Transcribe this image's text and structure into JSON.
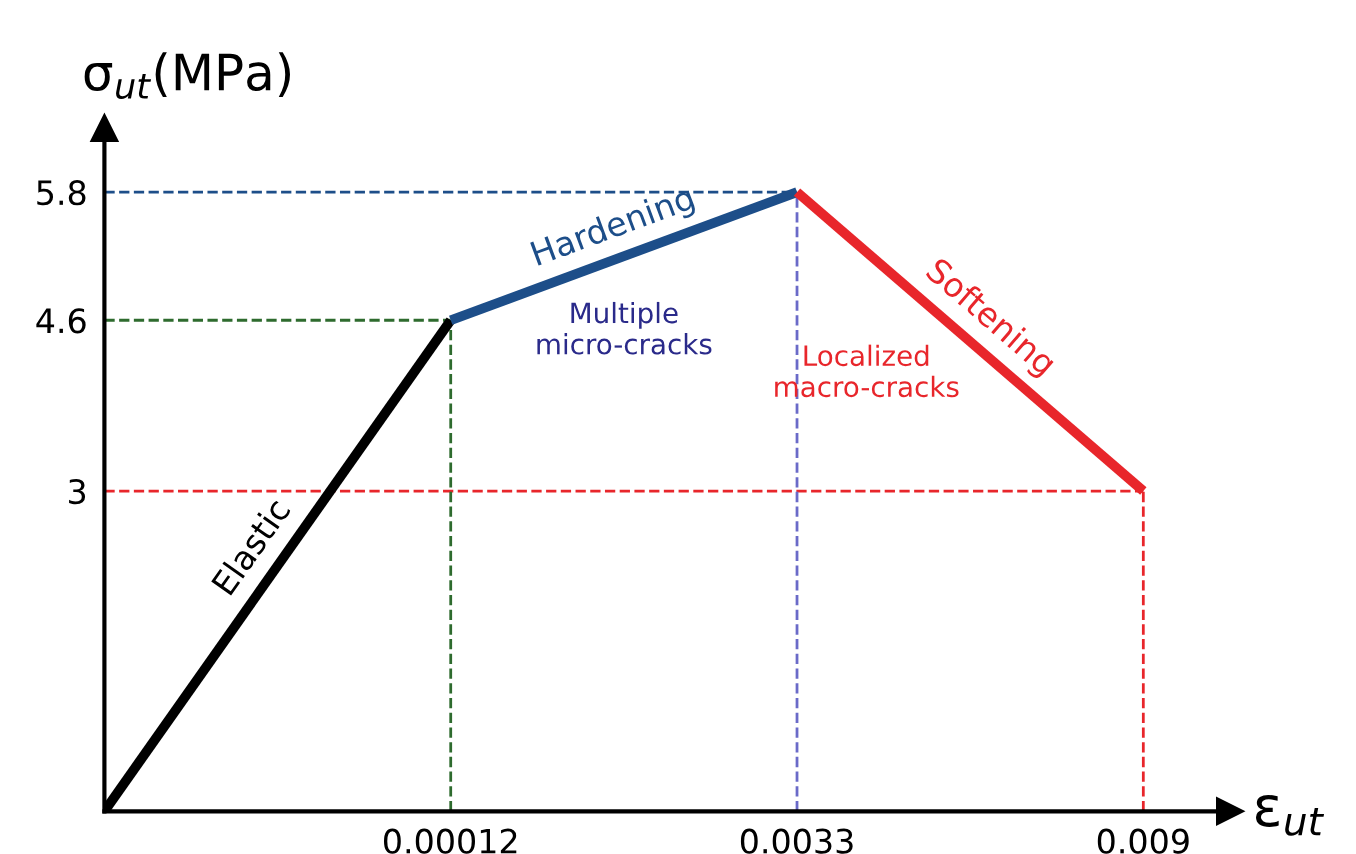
{
  "chart_data": {
    "type": "line",
    "xlabel": "ε$_{ut}$",
    "ylabel": "σ$_{ut}$(MPa)",
    "categories": [
      null,
      "0.00012",
      "0.0033",
      "0.009"
    ],
    "series": [
      {
        "name": "Elastic",
        "color": "#000000",
        "values": [
          0,
          4.6,
          null,
          null
        ]
      },
      {
        "name": "Hardening",
        "color": "#1d4e89",
        "values": [
          null,
          4.6,
          5.8,
          null
        ]
      },
      {
        "name": "Softening",
        "color": "#e8262b",
        "values": [
          null,
          null,
          5.8,
          3
        ]
      }
    ],
    "ylim": [
      0,
      6.4
    ],
    "yticks": [
      3,
      4.6,
      5.8
    ],
    "ref_lines": [
      {
        "axis": "y",
        "value": 5.8,
        "color": "#1d4e89",
        "line_style": "dashed"
      },
      {
        "axis": "y",
        "value": 4.6,
        "color": "#2e6b2e",
        "line_style": "dashed"
      },
      {
        "axis": "y",
        "value": 3,
        "color": "#e8262b",
        "line_style": "dashed"
      },
      {
        "axis": "x",
        "value": "0.00012",
        "color": "#2e6b2e",
        "line_style": "dashed"
      },
      {
        "axis": "x",
        "value": "0.0033",
        "color": "#6a6ac8",
        "line_style": "dashed"
      },
      {
        "axis": "x",
        "value": "0.009",
        "color": "#e8262b",
        "line_style": "dashed"
      }
    ],
    "annotations": [
      "Multiple\nmicro-cracks",
      "Localized\nmacro-cracks"
    ],
    "grid": false,
    "legend": false,
    "marker": "none",
    "line_style": "solid"
  }
}
